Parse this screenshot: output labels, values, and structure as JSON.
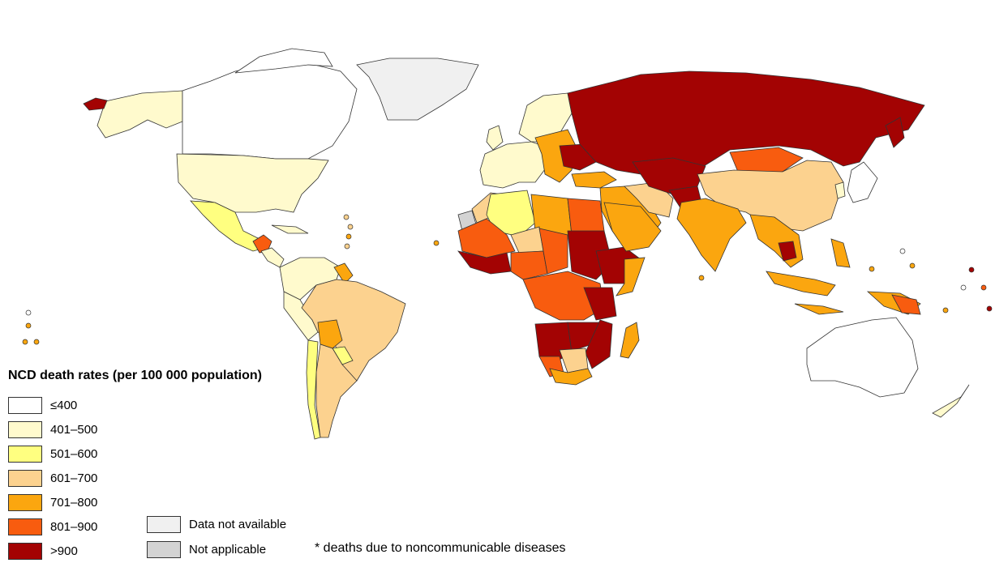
{
  "legend": {
    "title": "NCD death rates (per 100 000 population)",
    "bins": [
      {
        "label": "≤400",
        "color": "#ffffff"
      },
      {
        "label": "401–500",
        "color": "#fffacd"
      },
      {
        "label": "501–600",
        "color": "#ffff80"
      },
      {
        "label": "601–700",
        "color": "#fcd28f"
      },
      {
        "label": "701–800",
        "color": "#fba60f"
      },
      {
        "label": "801–900",
        "color": "#f85c0f"
      },
      {
        "label": ">900",
        "color": "#a30303"
      }
    ],
    "extra": [
      {
        "label": "Data not available",
        "color": "#f0f0f0"
      },
      {
        "label": "Not applicable",
        "color": "#d3d3d3"
      }
    ]
  },
  "footnote": "* deaths due to noncommunicable diseases",
  "colors": {
    "le400": "#ffffff",
    "r401_500": "#fffacd",
    "r501_600": "#ffff80",
    "r601_700": "#fcd28f",
    "r701_800": "#fba60f",
    "r801_900": "#f85c0f",
    "gt900": "#a30303",
    "na": "#f0f0f0",
    "notapp": "#d3d3d3",
    "border": "#333333"
  }
}
